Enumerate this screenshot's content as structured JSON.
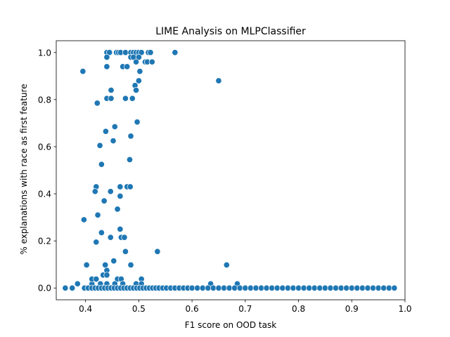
{
  "chart_data": {
    "type": "scatter",
    "title": "LIME Analysis on MLPClassifier",
    "xlabel": "F1 score on OOD task",
    "ylabel": "% explanations with race as first feature",
    "xlim": [
      0.345,
      1.0
    ],
    "ylim": [
      -0.05,
      1.05
    ],
    "xticks": [
      0.4,
      0.5,
      0.6,
      0.7,
      0.8,
      0.9,
      1.0
    ],
    "xtick_labels": [
      "0.4",
      "0.5",
      "0.6",
      "0.7",
      "0.8",
      "0.9",
      "1.0"
    ],
    "yticks": [
      0.0,
      0.2,
      0.4,
      0.6,
      0.8,
      1.0
    ],
    "ytick_labels": [
      "0.0",
      "0.2",
      "0.4",
      "0.6",
      "0.8",
      "1.0"
    ],
    "color": "#1f77b4",
    "series": [
      {
        "name": "MLPClassifier",
        "points": [
          [
            0.44,
            1.0
          ],
          [
            0.445,
            1.0
          ],
          [
            0.458,
            1.0
          ],
          [
            0.462,
            1.0
          ],
          [
            0.466,
            1.0
          ],
          [
            0.475,
            1.0
          ],
          [
            0.485,
            1.0
          ],
          [
            0.49,
            1.0
          ],
          [
            0.495,
            1.0
          ],
          [
            0.5,
            1.0
          ],
          [
            0.505,
            1.0
          ],
          [
            0.518,
            1.0
          ],
          [
            0.522,
            1.0
          ],
          [
            0.568,
            1.0
          ],
          [
            0.44,
            0.98
          ],
          [
            0.485,
            0.98
          ],
          [
            0.49,
            0.98
          ],
          [
            0.5,
            0.98
          ],
          [
            0.395,
            0.92
          ],
          [
            0.44,
            0.94
          ],
          [
            0.47,
            0.94
          ],
          [
            0.478,
            0.94
          ],
          [
            0.495,
            0.96
          ],
          [
            0.512,
            0.96
          ],
          [
            0.516,
            0.96
          ],
          [
            0.525,
            0.96
          ],
          [
            0.502,
            0.92
          ],
          [
            0.5,
            0.88
          ],
          [
            0.65,
            0.88
          ],
          [
            0.448,
            0.84
          ],
          [
            0.493,
            0.86
          ],
          [
            0.495,
            0.84
          ],
          [
            0.422,
            0.785
          ],
          [
            0.44,
            0.805
          ],
          [
            0.448,
            0.805
          ],
          [
            0.475,
            0.805
          ],
          [
            0.488,
            0.805
          ],
          [
            0.497,
            0.705
          ],
          [
            0.455,
            0.685
          ],
          [
            0.438,
            0.665
          ],
          [
            0.485,
            0.645
          ],
          [
            0.452,
            0.625
          ],
          [
            0.427,
            0.605
          ],
          [
            0.483,
            0.545
          ],
          [
            0.43,
            0.525
          ],
          [
            0.42,
            0.43
          ],
          [
            0.465,
            0.43
          ],
          [
            0.478,
            0.43
          ],
          [
            0.484,
            0.43
          ],
          [
            0.418,
            0.41
          ],
          [
            0.447,
            0.41
          ],
          [
            0.465,
            0.39
          ],
          [
            0.435,
            0.37
          ],
          [
            0.46,
            0.335
          ],
          [
            0.423,
            0.31
          ],
          [
            0.397,
            0.29
          ],
          [
            0.465,
            0.25
          ],
          [
            0.43,
            0.235
          ],
          [
            0.447,
            0.215
          ],
          [
            0.467,
            0.215
          ],
          [
            0.473,
            0.215
          ],
          [
            0.42,
            0.195
          ],
          [
            0.475,
            0.155
          ],
          [
            0.535,
            0.155
          ],
          [
            0.453,
            0.115
          ],
          [
            0.402,
            0.098
          ],
          [
            0.437,
            0.098
          ],
          [
            0.485,
            0.098
          ],
          [
            0.665,
            0.098
          ],
          [
            0.44,
            0.075
          ],
          [
            0.433,
            0.055
          ],
          [
            0.44,
            0.055
          ],
          [
            0.46,
            0.038
          ],
          [
            0.467,
            0.038
          ],
          [
            0.505,
            0.038
          ],
          [
            0.385,
            0.018
          ],
          [
            0.412,
            0.018
          ],
          [
            0.428,
            0.018
          ],
          [
            0.44,
            0.018
          ],
          [
            0.455,
            0.018
          ],
          [
            0.47,
            0.018
          ],
          [
            0.495,
            0.018
          ],
          [
            0.505,
            0.018
          ],
          [
            0.635,
            0.018
          ],
          [
            0.685,
            0.018
          ],
          [
            0.412,
            0.038
          ],
          [
            0.42,
            0.038
          ],
          [
            0.362,
            0.0
          ],
          [
            0.375,
            0.0
          ],
          [
            0.398,
            0.0
          ],
          [
            0.405,
            0.0
          ],
          [
            0.412,
            0.0
          ],
          [
            0.418,
            0.0
          ],
          [
            0.424,
            0.0
          ],
          [
            0.43,
            0.0
          ],
          [
            0.436,
            0.0
          ],
          [
            0.442,
            0.0
          ],
          [
            0.448,
            0.0
          ],
          [
            0.454,
            0.0
          ],
          [
            0.46,
            0.0
          ],
          [
            0.466,
            0.0
          ],
          [
            0.472,
            0.0
          ],
          [
            0.478,
            0.0
          ],
          [
            0.484,
            0.0
          ],
          [
            0.49,
            0.0
          ],
          [
            0.496,
            0.0
          ],
          [
            0.502,
            0.0
          ],
          [
            0.508,
            0.0
          ],
          [
            0.514,
            0.0
          ],
          [
            0.52,
            0.0
          ],
          [
            0.526,
            0.0
          ],
          [
            0.532,
            0.0
          ],
          [
            0.538,
            0.0
          ],
          [
            0.545,
            0.0
          ],
          [
            0.552,
            0.0
          ],
          [
            0.56,
            0.0
          ],
          [
            0.568,
            0.0
          ],
          [
            0.576,
            0.0
          ],
          [
            0.584,
            0.0
          ],
          [
            0.592,
            0.0
          ],
          [
            0.6,
            0.0
          ],
          [
            0.61,
            0.0
          ],
          [
            0.62,
            0.0
          ],
          [
            0.63,
            0.0
          ],
          [
            0.64,
            0.0
          ],
          [
            0.65,
            0.0
          ],
          [
            0.66,
            0.0
          ],
          [
            0.67,
            0.0
          ],
          [
            0.68,
            0.0
          ],
          [
            0.69,
            0.0
          ],
          [
            0.7,
            0.0
          ],
          [
            0.71,
            0.0
          ],
          [
            0.72,
            0.0
          ],
          [
            0.73,
            0.0
          ],
          [
            0.74,
            0.0
          ],
          [
            0.75,
            0.0
          ],
          [
            0.76,
            0.0
          ],
          [
            0.77,
            0.0
          ],
          [
            0.78,
            0.0
          ],
          [
            0.79,
            0.0
          ],
          [
            0.8,
            0.0
          ],
          [
            0.81,
            0.0
          ],
          [
            0.82,
            0.0
          ],
          [
            0.83,
            0.0
          ],
          [
            0.84,
            0.0
          ],
          [
            0.85,
            0.0
          ],
          [
            0.86,
            0.0
          ],
          [
            0.87,
            0.0
          ],
          [
            0.88,
            0.0
          ],
          [
            0.89,
            0.0
          ],
          [
            0.9,
            0.0
          ],
          [
            0.91,
            0.0
          ],
          [
            0.92,
            0.0
          ],
          [
            0.93,
            0.0
          ],
          [
            0.94,
            0.0
          ],
          [
            0.95,
            0.0
          ],
          [
            0.96,
            0.0
          ],
          [
            0.97,
            0.0
          ],
          [
            0.98,
            0.0
          ]
        ]
      }
    ]
  }
}
